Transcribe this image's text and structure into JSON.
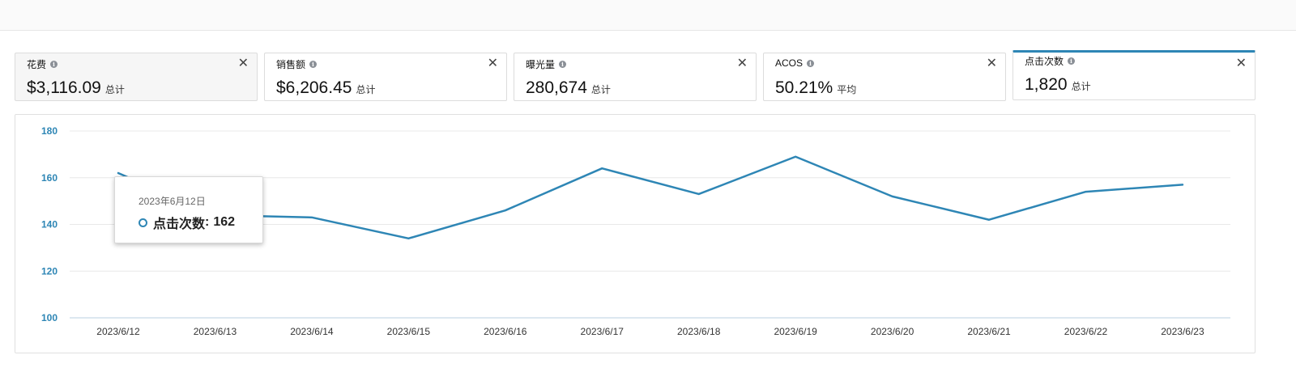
{
  "metrics": [
    {
      "label": "花费",
      "value": "$3,116.09",
      "agg": "总计",
      "state": "selected"
    },
    {
      "label": "销售额",
      "value": "$6,206.45",
      "agg": "总计",
      "state": "normal"
    },
    {
      "label": "曝光量",
      "value": "280,674",
      "agg": "总计",
      "state": "normal"
    },
    {
      "label": "ACOS",
      "value": "50.21%",
      "agg": "平均",
      "state": "normal"
    },
    {
      "label": "点击次数",
      "value": "1,820",
      "agg": "总计",
      "state": "active"
    }
  ],
  "icons": {
    "info": "info-icon",
    "close": "close-icon",
    "close_glyph": "✕"
  },
  "colors": {
    "accent": "#2e86b5",
    "line": "#2e86b5"
  },
  "tooltip": {
    "date": "2023年6月12日",
    "series": "点击次数",
    "value": "162"
  },
  "chart_data": {
    "type": "line",
    "x": [
      "2023/6/12",
      "2023/6/13",
      "2023/6/14",
      "2023/6/15",
      "2023/6/16",
      "2023/6/17",
      "2023/6/18",
      "2023/6/19",
      "2023/6/20",
      "2023/6/21",
      "2023/6/22",
      "2023/6/23"
    ],
    "series": [
      {
        "values": [
          162,
          144,
          143,
          134,
          146,
          164,
          153,
          169,
          152,
          142,
          154,
          157
        ]
      }
    ],
    "yticks": [
      100,
      120,
      140,
      160,
      180
    ],
    "ylim": [
      100,
      180
    ],
    "grid": true
  }
}
